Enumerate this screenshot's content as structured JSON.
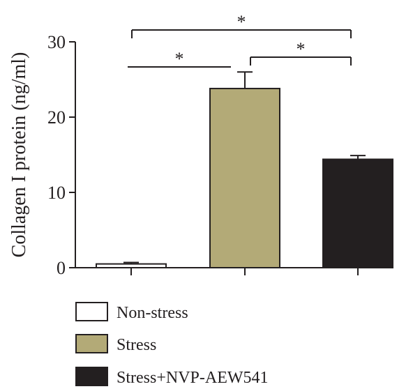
{
  "chart_data": {
    "type": "bar",
    "title": "",
    "xlabel": "",
    "ylabel": "Collagen I protein (ng/ml)",
    "ylim": [
      0,
      30
    ],
    "yticks": [
      0,
      10,
      20,
      30
    ],
    "grid": false,
    "legend_position": "bottom",
    "categories": [
      "Non-stress",
      "Stress",
      "Stress+NVP-AEW541"
    ],
    "series": [
      {
        "values": [
          0.5,
          23.8,
          14.4
        ],
        "errors": [
          0.2,
          2.2,
          0.5
        ]
      }
    ],
    "colors": [
      "#ffffff",
      "#b3aa77",
      "#231f20"
    ],
    "significance": [
      {
        "from": 0,
        "to": 1,
        "label": "*"
      },
      {
        "from": 1,
        "to": 2,
        "label": "*"
      },
      {
        "from": 0,
        "to": 2,
        "label": "*"
      }
    ],
    "legend": [
      {
        "label": "Non-stress",
        "color": "#ffffff"
      },
      {
        "label": "Stress",
        "color": "#b3aa77"
      },
      {
        "label": "Stress+NVP-AEW541",
        "color": "#231f20"
      }
    ]
  }
}
